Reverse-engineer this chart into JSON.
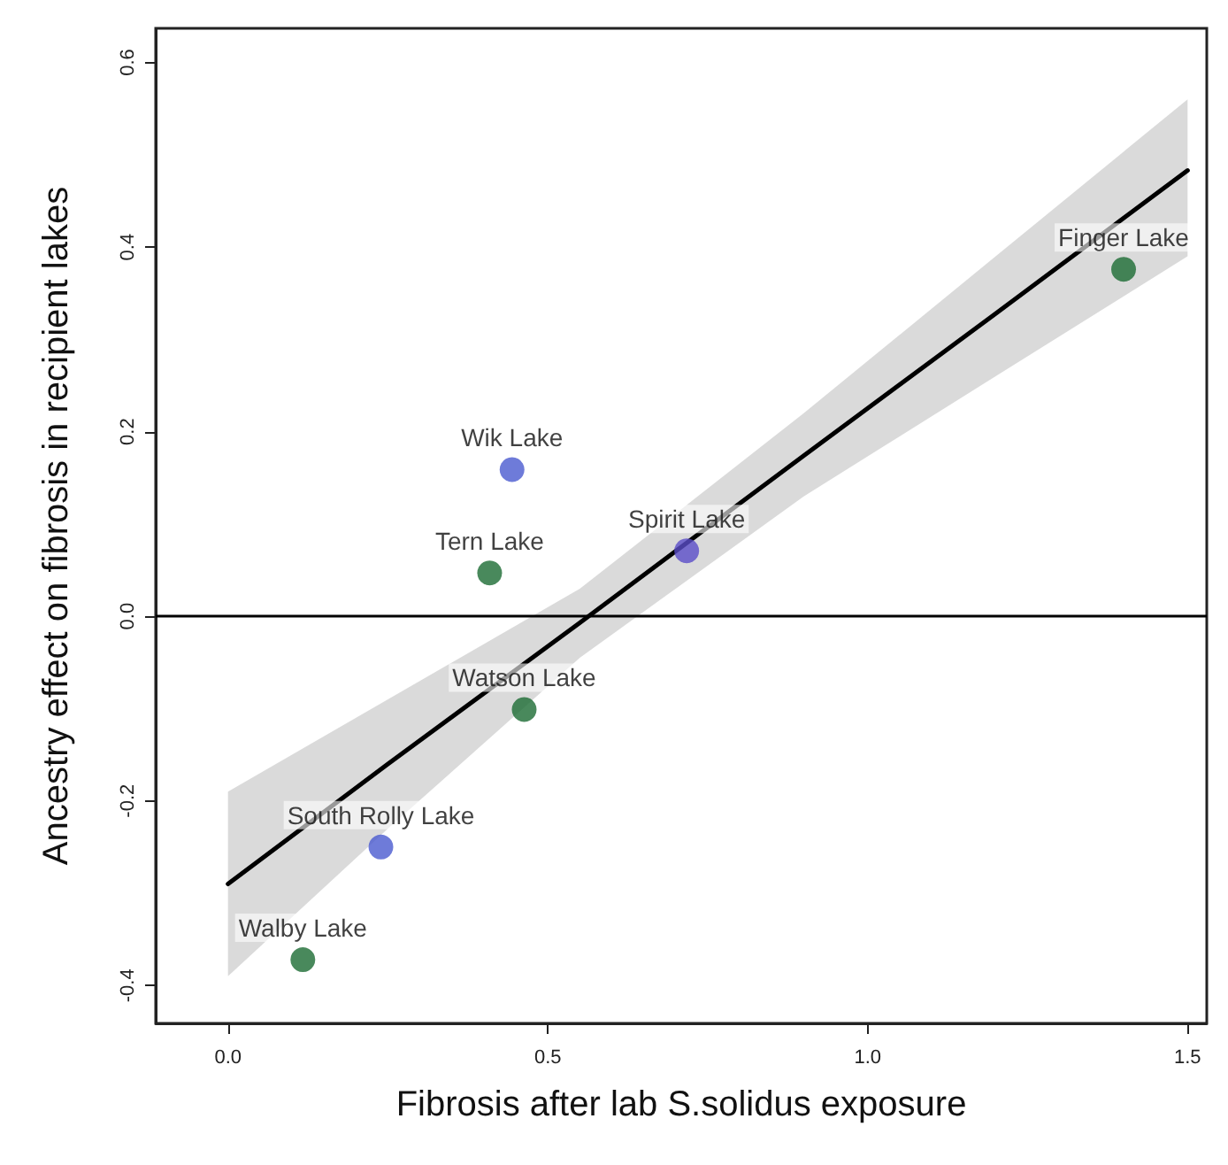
{
  "chart_data": {
    "type": "scatter",
    "xlabel": "Fibrosis after lab S.solidus exposure",
    "ylabel": "Ancestry effect on fibrosis in recipient lakes",
    "xlim": [
      -0.113,
      1.53
    ],
    "ylim": [
      -0.441,
      0.637
    ],
    "xticks": [
      {
        "value": 0,
        "label": "0.0"
      },
      0.5,
      {
        "value": 1,
        "label": "1.0"
      },
      1.5
    ],
    "yticks": [
      -0.4,
      -0.2,
      {
        "value": 0,
        "label": "0.0"
      },
      0.2,
      0.4,
      0.6
    ],
    "series": [
      {
        "x": [
          1.4,
          0.409,
          0.463,
          0.117
        ],
        "values": [
          0.376,
          0.047,
          -0.101,
          -0.372
        ],
        "color": "#1b6b33"
      },
      {
        "x": [
          0.444,
          0.717,
          0.239
        ],
        "values": [
          0.159,
          0.071,
          -0.25
        ],
        "colors": [
          "#4a5ad0",
          "#5a4cc8",
          "#4a5ad0"
        ]
      },
      {
        "type": "line",
        "marker": "none",
        "x": [
          0,
          0.25,
          0.55,
          0.9,
          1.2,
          1.5
        ],
        "values": [
          -0.29,
          -0.16,
          -0.007,
          0.174,
          0.328,
          0.483
        ],
        "lower": [
          -0.39,
          -0.23,
          -0.045,
          0.13,
          0.26,
          0.39
        ],
        "upper": [
          -0.19,
          -0.09,
          0.03,
          0.22,
          0.39,
          0.56
        ],
        "color": "#000000"
      }
    ],
    "annotations": [
      {
        "text": "Finger Lake",
        "x": 1.4,
        "y": 0.376
      },
      {
        "text": "Wik Lake",
        "x": 0.444,
        "y": 0.159
      },
      {
        "text": "Tern Lake",
        "x": 0.409,
        "y": 0.047
      },
      {
        "text": "Spirit Lake",
        "x": 0.717,
        "y": 0.071
      },
      {
        "text": "Watson Lake",
        "x": 0.463,
        "y": -0.101
      },
      {
        "text": "South Rolly Lake",
        "x": 0.239,
        "y": -0.25
      },
      {
        "text": "Walby Lake",
        "x": 0.117,
        "y": -0.372
      }
    ],
    "ref_lines": [
      {
        "axis": "y",
        "value": 0,
        "color": "#000000"
      }
    ],
    "marker": "circle",
    "grid": false
  }
}
